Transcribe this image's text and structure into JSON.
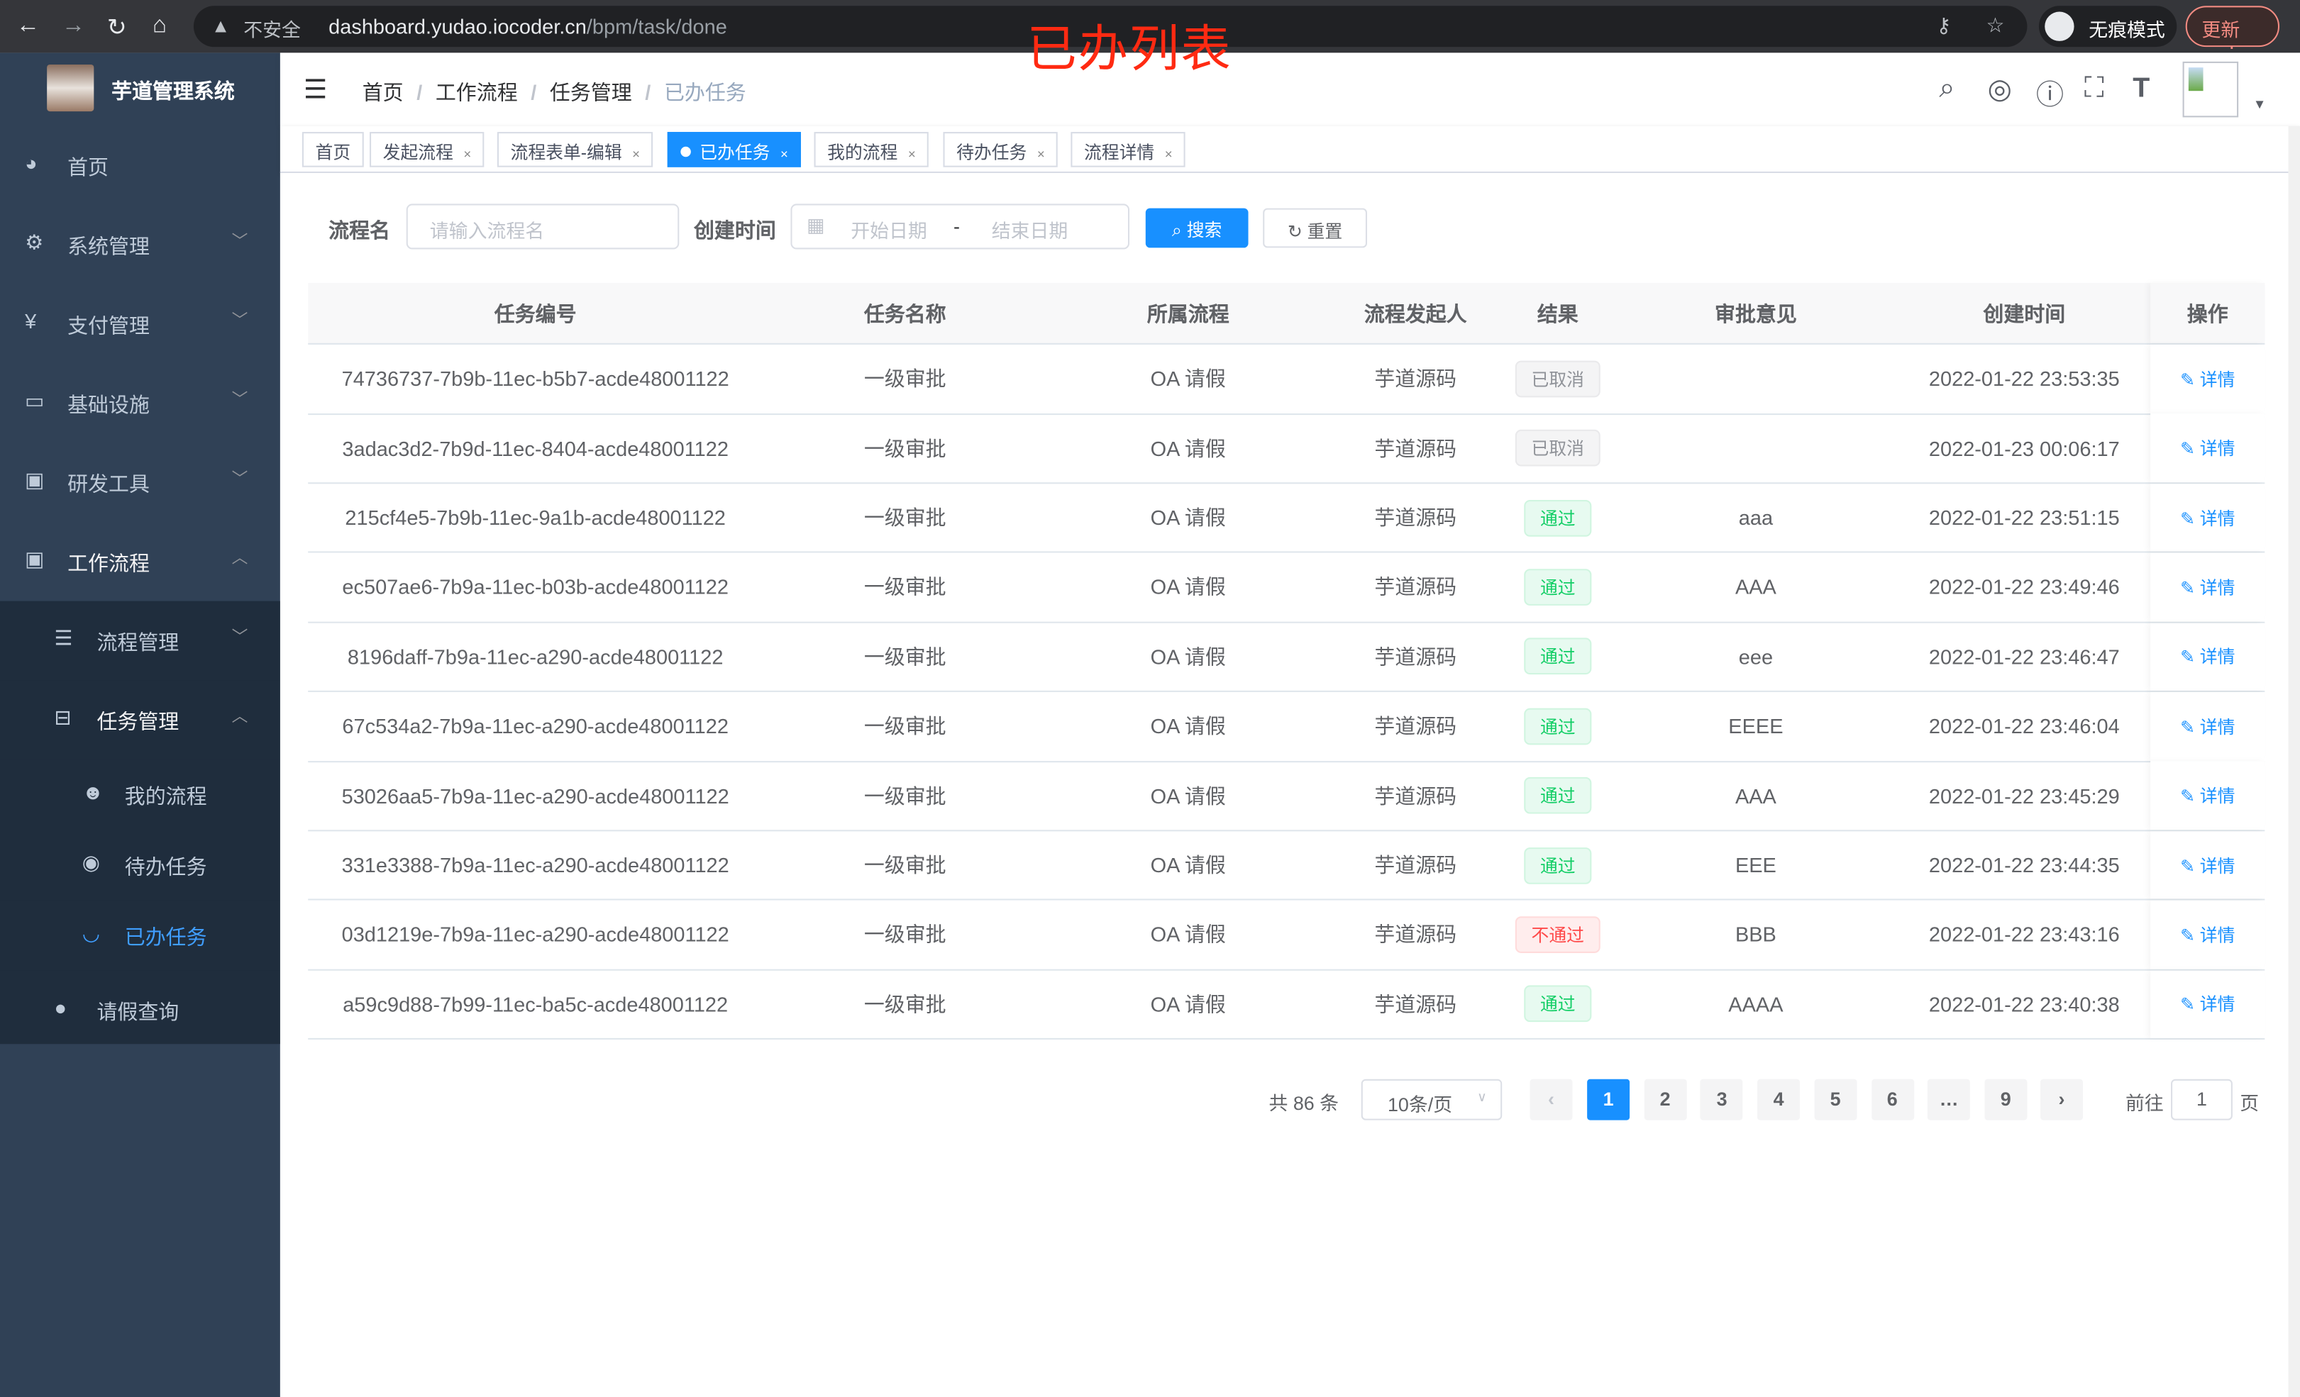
{
  "browser": {
    "insecure_label": "不安全",
    "url_host": "dashboard.yudao.iocoder.cn",
    "url_path": "/bpm/task/done",
    "incognito_label": "无痕模式",
    "update_label": "更新"
  },
  "annotation": "已办列表",
  "sidebar": {
    "brand": "芋道管理系统",
    "items": [
      {
        "label": "首页",
        "icon": "dashboard-icon"
      },
      {
        "label": "系统管理",
        "icon": "gear-icon"
      },
      {
        "label": "支付管理",
        "icon": "yen-icon"
      },
      {
        "label": "基础设施",
        "icon": "monitor-icon"
      },
      {
        "label": "研发工具",
        "icon": "toolbox-icon"
      },
      {
        "label": "工作流程",
        "icon": "toolbox-icon"
      },
      {
        "label": "流程管理",
        "icon": "list-icon"
      },
      {
        "label": "任务管理",
        "icon": "tree-icon"
      },
      {
        "label": "我的流程",
        "icon": "people-icon"
      },
      {
        "label": "待办任务",
        "icon": "eye-icon"
      },
      {
        "label": "已办任务",
        "icon": "eye-closed-icon"
      },
      {
        "label": "请假查询",
        "icon": "user-icon"
      }
    ]
  },
  "breadcrumb": [
    "首页",
    "工作流程",
    "任务管理",
    "已办任务"
  ],
  "tags": [
    {
      "label": "首页",
      "closable": false
    },
    {
      "label": "发起流程",
      "closable": true
    },
    {
      "label": "流程表单-编辑",
      "closable": true
    },
    {
      "label": "已办任务",
      "closable": true,
      "active": true
    },
    {
      "label": "我的流程",
      "closable": true
    },
    {
      "label": "待办任务",
      "closable": true
    },
    {
      "label": "流程详情",
      "closable": true
    }
  ],
  "filters": {
    "name_label": "流程名",
    "name_placeholder": "请输入流程名",
    "time_label": "创建时间",
    "start_placeholder": "开始日期",
    "range_sep": "-",
    "end_placeholder": "结束日期",
    "search_label": "搜索",
    "reset_label": "重置"
  },
  "table": {
    "headers": [
      "任务编号",
      "任务名称",
      "所属流程",
      "流程发起人",
      "结果",
      "审批意见",
      "创建时间",
      "操作"
    ],
    "rows": [
      {
        "id": "74736737-7b9b-11ec-b5b7-acde48001122",
        "name": "一级审批",
        "process": "OA 请假",
        "starter": "芋道源码",
        "result": "已取消",
        "status": "cancel",
        "comment": "",
        "time": "2022-01-22 23:53:35",
        "action": "详情"
      },
      {
        "id": "3adac3d2-7b9d-11ec-8404-acde48001122",
        "name": "一级审批",
        "process": "OA 请假",
        "starter": "芋道源码",
        "result": "已取消",
        "status": "cancel",
        "comment": "",
        "time": "2022-01-23 00:06:17",
        "action": "详情"
      },
      {
        "id": "215cf4e5-7b9b-11ec-9a1b-acde48001122",
        "name": "一级审批",
        "process": "OA 请假",
        "starter": "芋道源码",
        "result": "通过",
        "status": "pass",
        "comment": "aaa",
        "time": "2022-01-22 23:51:15",
        "action": "详情"
      },
      {
        "id": "ec507ae6-7b9a-11ec-b03b-acde48001122",
        "name": "一级审批",
        "process": "OA 请假",
        "starter": "芋道源码",
        "result": "通过",
        "status": "pass",
        "comment": "AAA",
        "time": "2022-01-22 23:49:46",
        "action": "详情"
      },
      {
        "id": "8196daff-7b9a-11ec-a290-acde48001122",
        "name": "一级审批",
        "process": "OA 请假",
        "starter": "芋道源码",
        "result": "通过",
        "status": "pass",
        "comment": "eee",
        "time": "2022-01-22 23:46:47",
        "action": "详情"
      },
      {
        "id": "67c534a2-7b9a-11ec-a290-acde48001122",
        "name": "一级审批",
        "process": "OA 请假",
        "starter": "芋道源码",
        "result": "通过",
        "status": "pass",
        "comment": "EEEE",
        "time": "2022-01-22 23:46:04",
        "action": "详情"
      },
      {
        "id": "53026aa5-7b9a-11ec-a290-acde48001122",
        "name": "一级审批",
        "process": "OA 请假",
        "starter": "芋道源码",
        "result": "通过",
        "status": "pass",
        "comment": "AAA",
        "time": "2022-01-22 23:45:29",
        "action": "详情"
      },
      {
        "id": "331e3388-7b9a-11ec-a290-acde48001122",
        "name": "一级审批",
        "process": "OA 请假",
        "starter": "芋道源码",
        "result": "通过",
        "status": "pass",
        "comment": "EEE",
        "time": "2022-01-22 23:44:35",
        "action": "详情"
      },
      {
        "id": "03d1219e-7b9a-11ec-a290-acde48001122",
        "name": "一级审批",
        "process": "OA 请假",
        "starter": "芋道源码",
        "result": "不通过",
        "status": "fail",
        "comment": "BBB",
        "time": "2022-01-22 23:43:16",
        "action": "详情"
      },
      {
        "id": "a59c9d88-7b99-11ec-ba5c-acde48001122",
        "name": "一级审批",
        "process": "OA 请假",
        "starter": "芋道源码",
        "result": "通过",
        "status": "pass",
        "comment": "AAAA",
        "time": "2022-01-22 23:40:38",
        "action": "详情"
      }
    ]
  },
  "pagination": {
    "total_label": "共 86 条",
    "page_size": "10条/页",
    "pages": [
      "1",
      "2",
      "3",
      "4",
      "5",
      "6",
      "…",
      "9"
    ],
    "current": "1",
    "goto_label": "前往",
    "goto_value": "1",
    "page_suffix": "页"
  },
  "colors": {
    "primary": "#1890ff",
    "sidebar": "#304156",
    "submenu": "#1f2d3d",
    "pass": "#13ce66",
    "fail": "#ff4949",
    "annotation": "#ff2a12"
  }
}
